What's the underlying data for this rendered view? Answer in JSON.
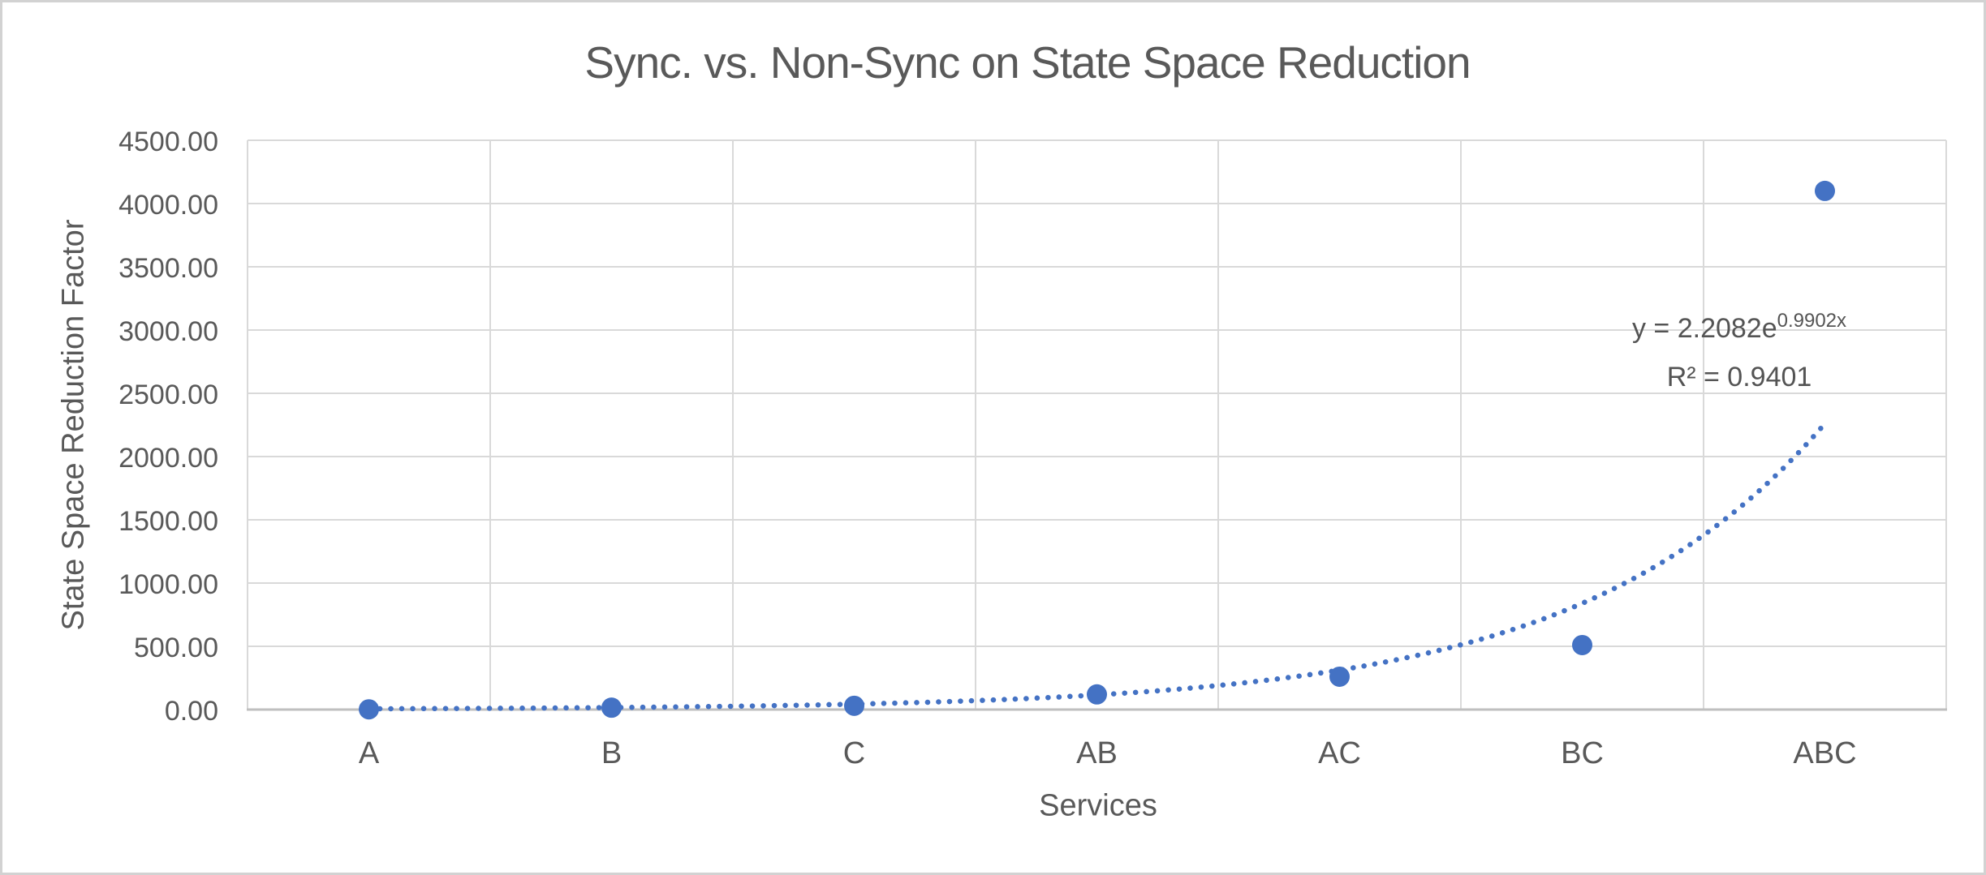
{
  "chart_data": {
    "type": "scatter",
    "title": "Sync. vs. Non-Sync on State Space Reduction",
    "xlabel": "Services",
    "ylabel": "State Space Reduction Factor",
    "categories": [
      "A",
      "B",
      "C",
      "AB",
      "AC",
      "BC",
      "ABC"
    ],
    "series": [
      {
        "name": "State Space Reduction Factor",
        "values": [
          2,
          15,
          30,
          120,
          260,
          510,
          4100
        ]
      }
    ],
    "ylim": [
      0,
      4500
    ],
    "y_tick_labels": [
      "0.00",
      "500.00",
      "1000.00",
      "1500.00",
      "2000.00",
      "2500.00",
      "3000.00",
      "3500.00",
      "4000.00",
      "4500.00"
    ],
    "grid": "horizontal major gridlines every 500; vertical gridlines at category boundaries; plot area outlined",
    "legend": "none",
    "trendline": {
      "type": "exponential",
      "a": 2.2082,
      "b": 0.9902,
      "x_start": 1,
      "x_end": 7,
      "label_base": "y = 2.2082e",
      "label_exponent": "0.9902x",
      "r_squared_label": "R² = 0.9401",
      "style": "dotted"
    },
    "colors": {
      "accent": "#4472C4",
      "gridline": "#D9D9D9",
      "axis_line": "#BFBFBF",
      "text": "#595959",
      "frame_border": "#D2D2D2",
      "background": "#FFFFFF"
    }
  }
}
